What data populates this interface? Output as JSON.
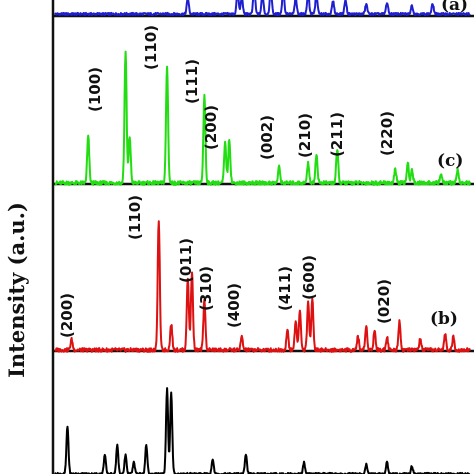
{
  "chart_data": {
    "type": "line",
    "ylabel": "Intensity (a.u.)",
    "xlim": [
      0,
      100
    ],
    "series": [
      {
        "name": "(a)",
        "color": "#1f1fd0",
        "peaks": [
          [
            32,
            55
          ],
          [
            44,
            80
          ],
          [
            45,
            60
          ],
          [
            48,
            90
          ],
          [
            50,
            70
          ],
          [
            52,
            90
          ],
          [
            55,
            85
          ],
          [
            58,
            55
          ],
          [
            61,
            75
          ],
          [
            63,
            70
          ],
          [
            67,
            45
          ],
          [
            70,
            50
          ],
          [
            75,
            35
          ],
          [
            80,
            40
          ],
          [
            86,
            30
          ],
          [
            91,
            35
          ]
        ],
        "noise_amp": 4,
        "label_values": [],
        "panel_label": "(a)"
      },
      {
        "name": "(c)",
        "color": "#22dd11",
        "peaks": [
          [
            8,
            35
          ],
          [
            17,
            100
          ],
          [
            18,
            35
          ],
          [
            27,
            88
          ],
          [
            36,
            66
          ],
          [
            41,
            30
          ],
          [
            42,
            33
          ],
          [
            54,
            12
          ],
          [
            61,
            15
          ],
          [
            63,
            22
          ],
          [
            68,
            25
          ],
          [
            82,
            10
          ],
          [
            85,
            15
          ],
          [
            86,
            10
          ],
          [
            93,
            7
          ],
          [
            97,
            10
          ]
        ],
        "noise_amp": 1.5,
        "label_values": [
          "(100)",
          "(110)",
          "(111)",
          "(200)",
          "(002)",
          "(210)",
          "(211)",
          "(220)"
        ],
        "panel_label": "(c)"
      },
      {
        "name": "(b)",
        "color": "#dd1111",
        "peaks": [
          [
            4,
            8
          ],
          [
            25,
            100
          ],
          [
            28,
            20
          ],
          [
            32,
            55
          ],
          [
            33,
            60
          ],
          [
            36,
            38
          ],
          [
            45,
            10
          ],
          [
            56,
            15
          ],
          [
            58,
            22
          ],
          [
            59,
            30
          ],
          [
            61,
            36
          ],
          [
            62,
            40
          ],
          [
            73,
            10
          ],
          [
            75,
            18
          ],
          [
            77,
            15
          ],
          [
            80,
            10
          ],
          [
            83,
            22
          ],
          [
            88,
            8
          ],
          [
            94,
            12
          ],
          [
            96,
            10
          ]
        ],
        "noise_amp": 1.5,
        "label_values": [
          "(200)",
          "(110)",
          "(011)",
          "(310)",
          "(400)",
          "(411)",
          "(600)",
          "(020)"
        ],
        "panel_label": "(b)"
      },
      {
        "name": "bottom",
        "color": "#000000",
        "peaks": [
          [
            3,
            50
          ],
          [
            12,
            20
          ],
          [
            15,
            30
          ],
          [
            17,
            20
          ],
          [
            19,
            12
          ],
          [
            22,
            30
          ],
          [
            27,
            90
          ],
          [
            28,
            85
          ],
          [
            38,
            16
          ],
          [
            46,
            20
          ],
          [
            60,
            12
          ],
          [
            75,
            10
          ],
          [
            80,
            12
          ],
          [
            86,
            8
          ]
        ],
        "noise_amp": 1.2,
        "label_values": [],
        "panel_label": ""
      }
    ]
  }
}
